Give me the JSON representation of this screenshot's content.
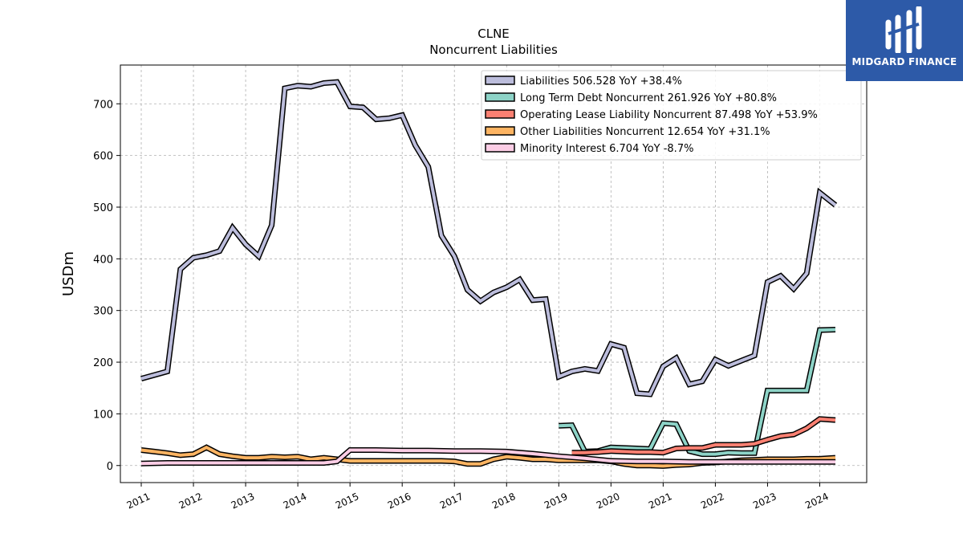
{
  "watermark": {
    "text": "MIDGARD FINANCE",
    "bg_color": "#2d5aa8"
  },
  "chart_data": {
    "type": "line",
    "title": "CLNE",
    "subtitle": "Noncurrent  Liabilities",
    "ylabel": "USDm",
    "xlabel": "",
    "xlim": [
      2010.6,
      2024.9
    ],
    "ylim": [
      -33,
      775
    ],
    "yticks": [
      0,
      100,
      200,
      300,
      400,
      500,
      600,
      700
    ],
    "xticks": [
      2011,
      2012,
      2013,
      2014,
      2015,
      2016,
      2017,
      2018,
      2019,
      2020,
      2021,
      2022,
      2023,
      2024
    ],
    "grid": true,
    "legend_position": "top-right",
    "series": [
      {
        "name": "Liabilities",
        "legend": "Liabilities  506.528 YoY +38.4%",
        "color": "#bcbddc",
        "points": [
          [
            2011.0,
            168
          ],
          [
            2011.25,
            175
          ],
          [
            2011.5,
            182
          ],
          [
            2011.75,
            380
          ],
          [
            2012.0,
            402
          ],
          [
            2012.25,
            407
          ],
          [
            2012.5,
            415
          ],
          [
            2012.75,
            460
          ],
          [
            2013.0,
            428
          ],
          [
            2013.25,
            405
          ],
          [
            2013.5,
            465
          ],
          [
            2013.75,
            730
          ],
          [
            2014.0,
            735
          ],
          [
            2014.25,
            733
          ],
          [
            2014.5,
            740
          ],
          [
            2014.75,
            742
          ],
          [
            2015.0,
            695
          ],
          [
            2015.25,
            693
          ],
          [
            2015.5,
            670
          ],
          [
            2015.75,
            672
          ],
          [
            2016.0,
            678
          ],
          [
            2016.25,
            620
          ],
          [
            2016.5,
            578
          ],
          [
            2016.75,
            445
          ],
          [
            2017.0,
            405
          ],
          [
            2017.25,
            340
          ],
          [
            2017.5,
            318
          ],
          [
            2017.75,
            335
          ],
          [
            2018.0,
            345
          ],
          [
            2018.25,
            360
          ],
          [
            2018.5,
            320
          ],
          [
            2018.75,
            322
          ],
          [
            2019.0,
            172
          ],
          [
            2019.25,
            182
          ],
          [
            2019.5,
            187
          ],
          [
            2019.75,
            183
          ],
          [
            2020.0,
            235
          ],
          [
            2020.25,
            228
          ],
          [
            2020.5,
            140
          ],
          [
            2020.75,
            138
          ],
          [
            2021.0,
            192
          ],
          [
            2021.25,
            208
          ],
          [
            2021.5,
            157
          ],
          [
            2021.75,
            163
          ],
          [
            2022.0,
            205
          ],
          [
            2022.25,
            193
          ],
          [
            2022.5,
            203
          ],
          [
            2022.75,
            213
          ],
          [
            2023.0,
            355
          ],
          [
            2023.25,
            367
          ],
          [
            2023.5,
            342
          ],
          [
            2023.75,
            372
          ],
          [
            2024.0,
            528
          ],
          [
            2024.3,
            504
          ]
        ]
      },
      {
        "name": "Long Term Debt Noncurrent",
        "legend": "Long Term Debt Noncurrent  261.926 YoY +80.8%",
        "color": "#8dd3c7",
        "points": [
          [
            2019.0,
            77
          ],
          [
            2019.25,
            78
          ],
          [
            2019.5,
            27
          ],
          [
            2019.75,
            28
          ],
          [
            2020.0,
            35
          ],
          [
            2020.25,
            34
          ],
          [
            2020.5,
            33
          ],
          [
            2020.75,
            32
          ],
          [
            2021.0,
            82
          ],
          [
            2021.25,
            80
          ],
          [
            2021.5,
            28
          ],
          [
            2021.75,
            22
          ],
          [
            2022.0,
            22
          ],
          [
            2022.25,
            25
          ],
          [
            2022.5,
            24
          ],
          [
            2022.75,
            24
          ],
          [
            2023.0,
            145
          ],
          [
            2023.25,
            145
          ],
          [
            2023.5,
            145
          ],
          [
            2023.75,
            145
          ],
          [
            2024.0,
            262
          ],
          [
            2024.3,
            263
          ]
        ]
      },
      {
        "name": "Operating Lease Liability Noncurrent",
        "legend": "Operating Lease Liability Noncurrent  87.498 YoY +53.9%",
        "color": "#fb8072",
        "points": [
          [
            2019.25,
            25
          ],
          [
            2019.5,
            25
          ],
          [
            2019.75,
            26
          ],
          [
            2020.0,
            28
          ],
          [
            2020.25,
            27
          ],
          [
            2020.5,
            26
          ],
          [
            2020.75,
            26
          ],
          [
            2021.0,
            25
          ],
          [
            2021.25,
            33
          ],
          [
            2021.5,
            34
          ],
          [
            2021.75,
            34
          ],
          [
            2022.0,
            40
          ],
          [
            2022.25,
            40
          ],
          [
            2022.5,
            40
          ],
          [
            2022.75,
            42
          ],
          [
            2023.0,
            50
          ],
          [
            2023.25,
            57
          ],
          [
            2023.5,
            60
          ],
          [
            2023.75,
            72
          ],
          [
            2024.0,
            90
          ],
          [
            2024.3,
            88
          ]
        ]
      },
      {
        "name": "Other Liabilities Noncurrent",
        "legend": "Other Liabilities Noncurrent  12.654 YoY +31.1%",
        "color": "#fdb462",
        "points": [
          [
            2011.0,
            30
          ],
          [
            2011.25,
            27
          ],
          [
            2011.5,
            24
          ],
          [
            2011.75,
            20
          ],
          [
            2012.0,
            22
          ],
          [
            2012.25,
            35
          ],
          [
            2012.5,
            22
          ],
          [
            2012.75,
            18
          ],
          [
            2013.0,
            15
          ],
          [
            2013.25,
            15
          ],
          [
            2013.5,
            17
          ],
          [
            2013.75,
            16
          ],
          [
            2014.0,
            17
          ],
          [
            2014.25,
            12
          ],
          [
            2014.5,
            15
          ],
          [
            2014.75,
            12
          ],
          [
            2015.0,
            9
          ],
          [
            2015.25,
            9
          ],
          [
            2015.5,
            9
          ],
          [
            2015.75,
            9
          ],
          [
            2016.0,
            9
          ],
          [
            2016.25,
            9
          ],
          [
            2016.5,
            9
          ],
          [
            2016.75,
            9
          ],
          [
            2017.0,
            8
          ],
          [
            2017.25,
            3
          ],
          [
            2017.5,
            3
          ],
          [
            2017.75,
            12
          ],
          [
            2018.0,
            17
          ],
          [
            2018.25,
            15
          ],
          [
            2018.5,
            12
          ],
          [
            2018.75,
            12
          ],
          [
            2019.0,
            10
          ],
          [
            2019.25,
            10
          ],
          [
            2019.5,
            10
          ],
          [
            2019.75,
            10
          ],
          [
            2020.0,
            8
          ],
          [
            2020.25,
            3
          ],
          [
            2020.5,
            0
          ],
          [
            2020.75,
            0
          ],
          [
            2021.0,
            -1
          ],
          [
            2021.25,
            1
          ],
          [
            2021.5,
            2
          ],
          [
            2021.75,
            5
          ],
          [
            2022.0,
            6
          ],
          [
            2022.25,
            8
          ],
          [
            2022.5,
            10
          ],
          [
            2022.75,
            11
          ],
          [
            2023.0,
            12
          ],
          [
            2023.25,
            12
          ],
          [
            2023.5,
            12
          ],
          [
            2023.75,
            13
          ],
          [
            2024.0,
            13
          ],
          [
            2024.3,
            15
          ]
        ]
      },
      {
        "name": "Minority Interest",
        "legend": "Minority Interest  6.704 YoY -8.7%",
        "color": "#fccde5",
        "points": [
          [
            2011.0,
            4
          ],
          [
            2011.5,
            5
          ],
          [
            2012.0,
            5
          ],
          [
            2012.5,
            5
          ],
          [
            2013.0,
            5
          ],
          [
            2013.5,
            5
          ],
          [
            2014.0,
            5
          ],
          [
            2014.5,
            5
          ],
          [
            2014.75,
            8
          ],
          [
            2015.0,
            30
          ],
          [
            2015.5,
            30
          ],
          [
            2016.0,
            29
          ],
          [
            2016.5,
            29
          ],
          [
            2017.0,
            28
          ],
          [
            2017.5,
            28
          ],
          [
            2018.0,
            27
          ],
          [
            2018.5,
            23
          ],
          [
            2019.0,
            18
          ],
          [
            2019.5,
            14
          ],
          [
            2020.0,
            9
          ],
          [
            2020.5,
            8
          ],
          [
            2021.0,
            8
          ],
          [
            2021.5,
            7
          ],
          [
            2022.0,
            7
          ],
          [
            2022.5,
            7
          ],
          [
            2023.0,
            7
          ],
          [
            2023.5,
            7
          ],
          [
            2024.0,
            7
          ],
          [
            2024.3,
            7
          ]
        ]
      }
    ]
  }
}
